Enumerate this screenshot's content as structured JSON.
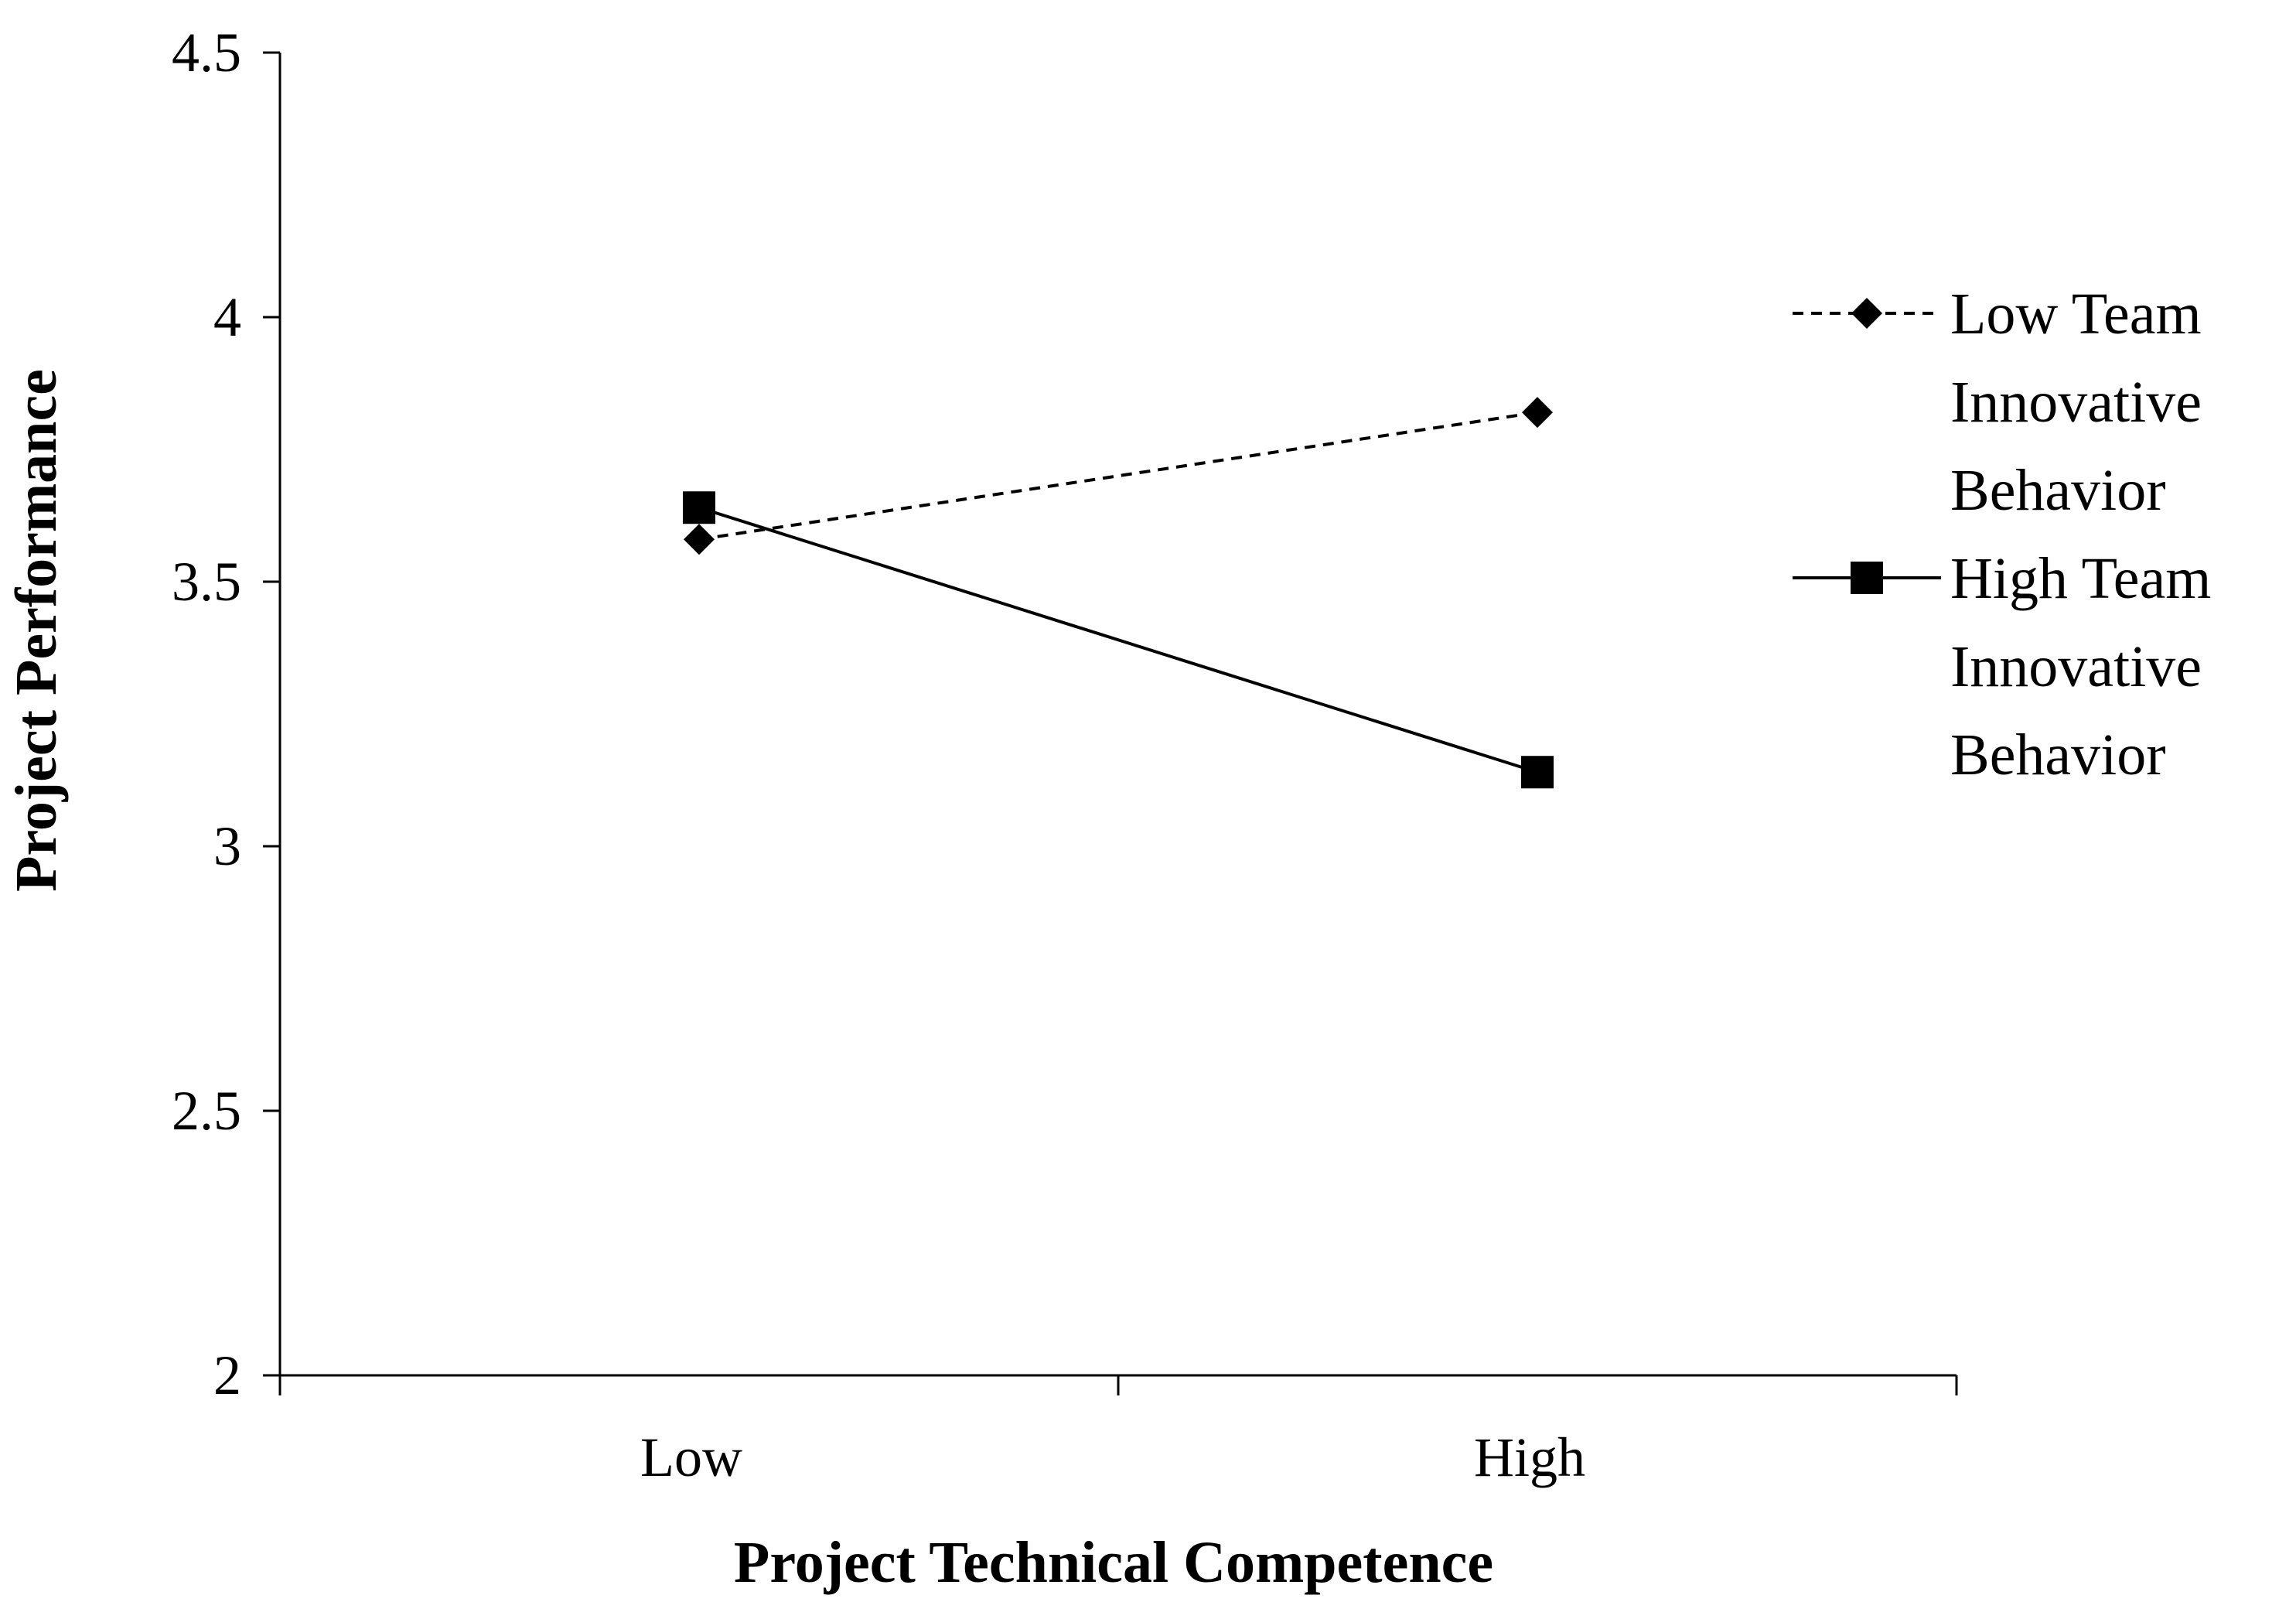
{
  "chart_data": {
    "type": "line",
    "title": "",
    "xlabel": "Project Technical Competence",
    "ylabel": "Project Performance",
    "categories": [
      "Low",
      "High"
    ],
    "ylim": [
      2,
      4.5
    ],
    "yticks": [
      "2",
      "2.5",
      "3",
      "3.5",
      "4",
      "4.5"
    ],
    "grid": false,
    "legend_placement": "right",
    "series": [
      {
        "name": "Low Team Innovative Behavior",
        "name_lines": [
          "Low Team",
          "Innovative",
          "Behavior"
        ],
        "values": [
          3.58,
          3.82
        ],
        "line_style": "dashed",
        "marker": "diamond",
        "color": "#000000"
      },
      {
        "name": "High Team Innovative Behavior",
        "name_lines": [
          "High Team",
          "Innovative",
          "Behavior"
        ],
        "values": [
          3.64,
          3.14
        ],
        "line_style": "solid",
        "marker": "square",
        "color": "#000000"
      }
    ]
  }
}
